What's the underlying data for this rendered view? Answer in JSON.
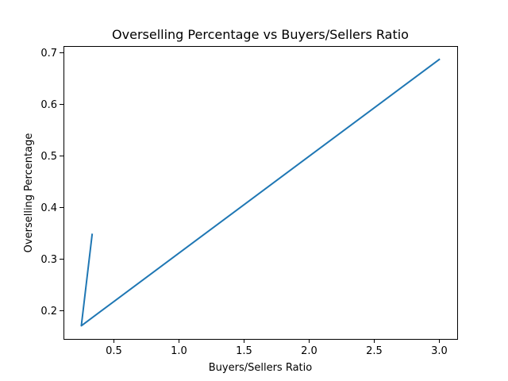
{
  "chart_data": {
    "type": "line",
    "title": "Overselling Percentage vs Buyers/Sellers Ratio",
    "xlabel": "Buyers/Sellers Ratio",
    "ylabel": "Overselling Percentage",
    "xlim": [
      0.113,
      3.138
    ],
    "ylim": [
      0.1445,
      0.712
    ],
    "grid": false,
    "x_ticks": [
      0.5,
      1.0,
      1.5,
      2.0,
      2.5,
      3.0
    ],
    "x_tick_labels": [
      "0.5",
      "1.0",
      "1.5",
      "2.0",
      "2.5",
      "3.0"
    ],
    "y_ticks": [
      0.2,
      0.3,
      0.4,
      0.5,
      0.6,
      0.7
    ],
    "y_tick_labels": [
      "0.2",
      "0.3",
      "0.4",
      "0.5",
      "0.6",
      "0.7"
    ],
    "series": [
      {
        "name": "Overselling Percentage",
        "color": "#1f77b4",
        "x": [
          0.333,
          0.25,
          3.0
        ],
        "y": [
          0.347,
          0.17,
          0.686
        ]
      }
    ]
  }
}
